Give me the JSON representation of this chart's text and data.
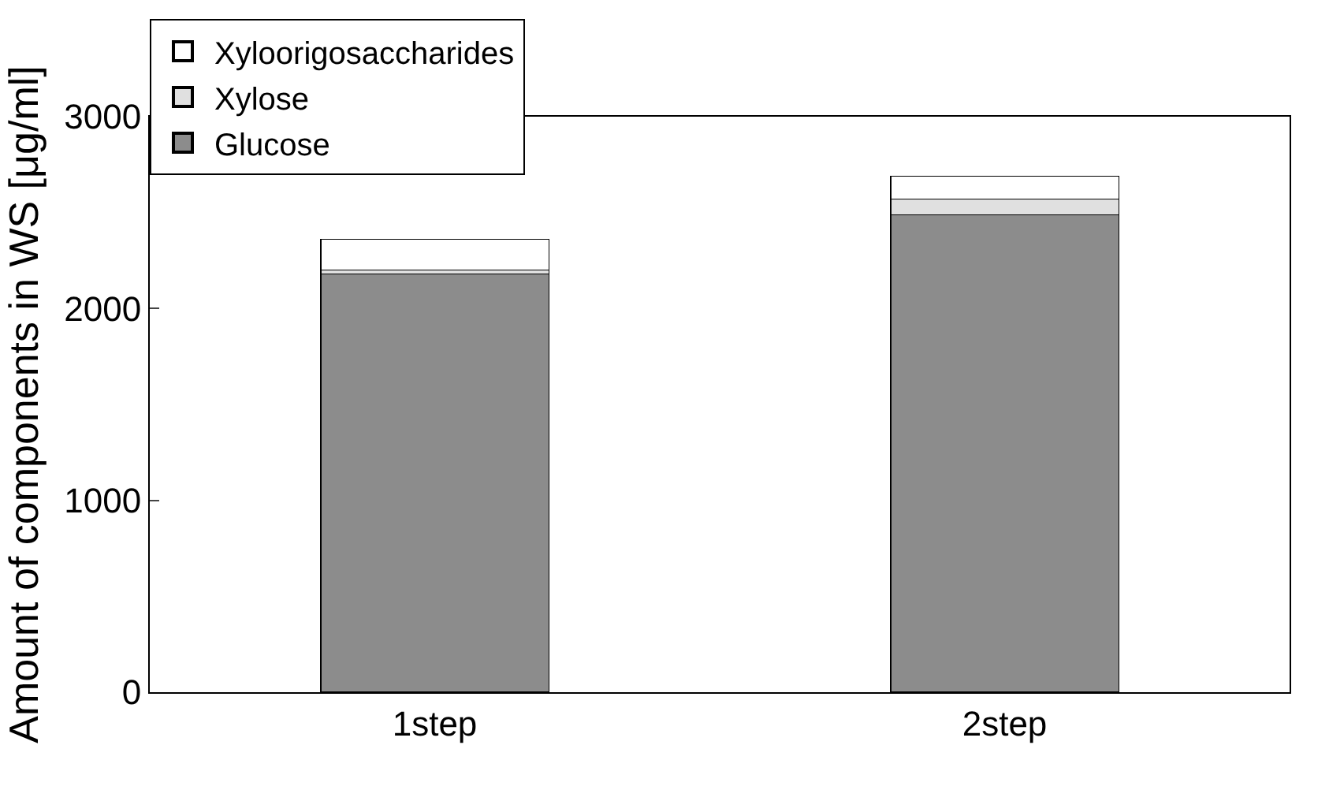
{
  "chart_data": {
    "type": "bar",
    "stacked": true,
    "ylabel": "Amount of components in WS [μg/ml]",
    "categories": [
      "1step",
      "2step"
    ],
    "series": [
      {
        "name": "Glucose",
        "color": "#8c8c8c",
        "values": [
          2180,
          2490
        ]
      },
      {
        "name": "Xylose",
        "color": "#e0e0e0",
        "values": [
          20,
          80
        ]
      },
      {
        "name": "Xyloorigosaccharides",
        "color": "#ffffff",
        "values": [
          160,
          120
        ]
      }
    ],
    "ylim": [
      0,
      3000
    ],
    "yticks": [
      0,
      1000,
      2000,
      3000
    ],
    "legend": "top left"
  }
}
